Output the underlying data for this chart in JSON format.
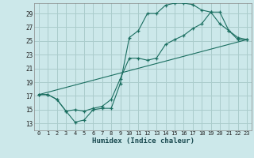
{
  "title": "",
  "xlabel": "Humidex (Indice chaleur)",
  "bg_color": "#cce8ea",
  "grid_color": "#aacccc",
  "line_color": "#1a6e60",
  "xlim": [
    -0.5,
    23.5
  ],
  "ylim": [
    12.0,
    30.5
  ],
  "xticks": [
    0,
    1,
    2,
    3,
    4,
    5,
    6,
    7,
    8,
    9,
    10,
    11,
    12,
    13,
    14,
    15,
    16,
    17,
    18,
    19,
    20,
    21,
    22,
    23
  ],
  "yticks": [
    13,
    15,
    17,
    19,
    21,
    23,
    25,
    27,
    29
  ],
  "curve1_x": [
    0,
    1,
    2,
    3,
    4,
    5,
    6,
    7,
    8,
    9,
    10,
    11,
    12,
    13,
    14,
    15,
    16,
    17,
    18,
    19,
    20,
    21,
    22,
    23
  ],
  "curve1_y": [
    17.2,
    17.2,
    16.5,
    14.8,
    13.2,
    13.5,
    15.0,
    15.2,
    15.2,
    18.8,
    25.5,
    26.5,
    29.0,
    29.0,
    30.2,
    30.5,
    30.5,
    30.3,
    29.5,
    29.2,
    27.5,
    26.5,
    25.2,
    25.2
  ],
  "curve2_x": [
    0,
    1,
    2,
    3,
    4,
    5,
    6,
    7,
    8,
    9,
    10,
    11,
    12,
    13,
    14,
    15,
    16,
    17,
    18,
    19,
    20,
    21,
    22,
    23
  ],
  "curve2_y": [
    17.2,
    17.2,
    16.5,
    14.8,
    15.0,
    14.8,
    15.2,
    15.5,
    16.5,
    19.5,
    22.5,
    22.5,
    22.2,
    22.5,
    24.5,
    25.2,
    25.8,
    26.8,
    27.5,
    29.2,
    29.2,
    26.5,
    25.5,
    25.2
  ],
  "curve3_x": [
    0,
    23
  ],
  "curve3_y": [
    17.2,
    25.2
  ]
}
